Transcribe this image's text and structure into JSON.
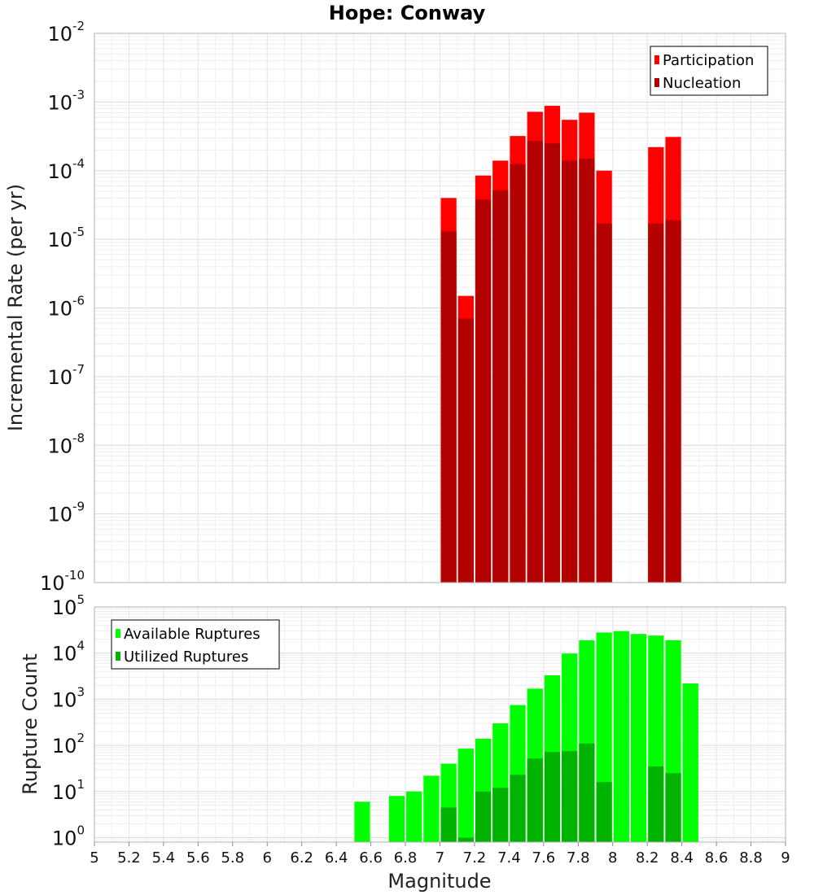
{
  "title": "Hope: Conway",
  "x_label": "Magnitude",
  "x_ticks": [
    "5",
    "5.2",
    "5.4",
    "5.6",
    "5.8",
    "6",
    "6.2",
    "6.4",
    "6.6",
    "6.8",
    "7",
    "7.2",
    "7.4",
    "7.6",
    "7.8",
    "8",
    "8.2",
    "8.4",
    "8.6",
    "8.8",
    "9"
  ],
  "chart_data": [
    {
      "type": "bar",
      "ylabel": "Incremental Rate (per yr)",
      "yscale": "log",
      "ylim": [
        1e-10,
        0.01
      ],
      "xlim": [
        5,
        9
      ],
      "y_tick_exponents": [
        "-10",
        "-9",
        "-8",
        "-7",
        "-6",
        "-5",
        "-4",
        "-3",
        "-2"
      ],
      "legend_position": "top-right",
      "x": [
        7.05,
        7.15,
        7.25,
        7.35,
        7.45,
        7.55,
        7.65,
        7.75,
        7.85,
        7.95,
        8.25,
        8.35
      ],
      "series": [
        {
          "name": "Participation",
          "color": "#ff0000",
          "values": [
            4e-05,
            1.5e-06,
            8.5e-05,
            0.00014,
            0.00032,
            0.00072,
            0.00088,
            0.00055,
            0.0007,
            0.0001,
            0.00022,
            0.00031
          ]
        },
        {
          "name": "Nucleation",
          "color": "#b30000",
          "values": [
            1.3e-05,
            7e-07,
            3.8e-05,
            5.2e-05,
            0.000125,
            0.00027,
            0.00025,
            0.00014,
            0.00015,
            1.7e-05,
            1.7e-05,
            1.9e-05
          ]
        }
      ]
    },
    {
      "type": "bar",
      "ylabel": "Rupture Count",
      "yscale": "log",
      "ylim": [
        0.8,
        100000
      ],
      "xlim": [
        5,
        9
      ],
      "y_tick_exponents": [
        "0",
        "1",
        "2",
        "3",
        "4",
        "5"
      ],
      "legend_position": "top-left",
      "series": [
        {
          "name": "Available Ruptures",
          "color": "#00ff00",
          "x": [
            6.55,
            6.75,
            6.85,
            6.95,
            7.05,
            7.15,
            7.25,
            7.35,
            7.45,
            7.55,
            7.65,
            7.75,
            7.85,
            7.95,
            8.05,
            8.15,
            8.25,
            8.35,
            8.45
          ],
          "values": [
            6,
            8,
            10,
            22,
            40,
            85,
            140,
            300,
            750,
            1700,
            3300,
            9800,
            19000,
            28000,
            30000,
            26000,
            24000,
            19000,
            2200
          ]
        },
        {
          "name": "Utilized Ruptures",
          "color": "#00b300",
          "x": [
            7.05,
            7.15,
            7.25,
            7.35,
            7.45,
            7.55,
            7.65,
            7.75,
            7.85,
            7.95,
            8.25,
            8.35
          ],
          "values": [
            4.5,
            1,
            10,
            12,
            23,
            52,
            72,
            75,
            110,
            16,
            35,
            25
          ]
        }
      ]
    }
  ]
}
